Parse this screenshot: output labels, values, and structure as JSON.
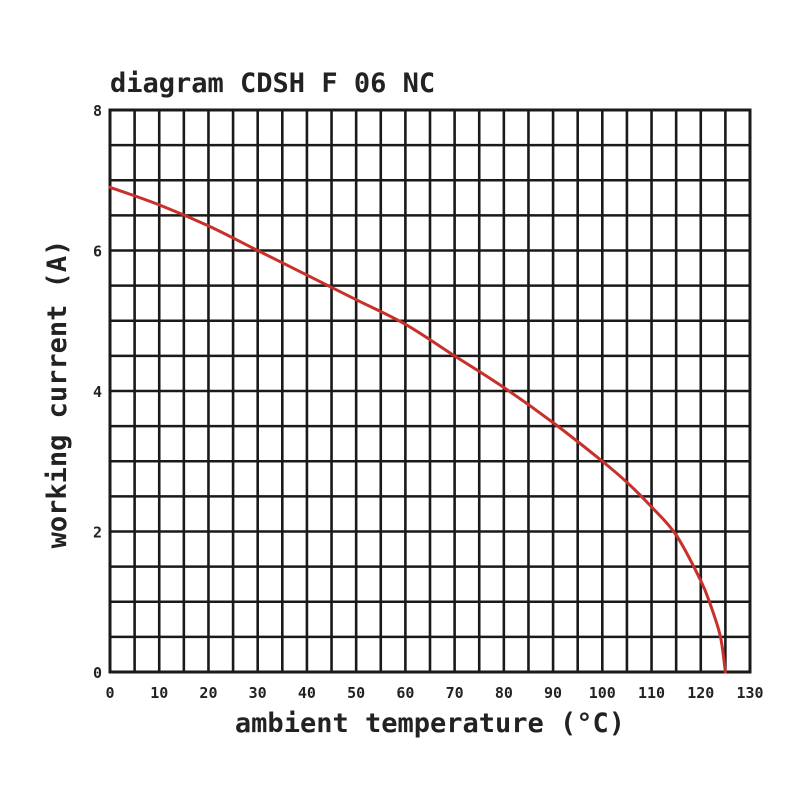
{
  "chart_data": {
    "type": "line",
    "title": "diagram CDSH F 06 NC",
    "xlabel": "ambient temperature (°C)",
    "ylabel": "working current (A)",
    "xlim": [
      0,
      130
    ],
    "ylim": [
      0,
      8
    ],
    "x_ticks": [
      "0",
      "10",
      "20",
      "30",
      "40",
      "50",
      "60",
      "70",
      "80",
      "90",
      "100",
      "110",
      "120",
      "130"
    ],
    "y_ticks": [
      "0",
      "2",
      "4",
      "6",
      "8"
    ],
    "x_grid_step": 5,
    "y_grid_step": 0.5,
    "grid": true,
    "line_color": "#c8312b",
    "series": [
      {
        "x": [
          0,
          10,
          20,
          30,
          40,
          50,
          60,
          70,
          80,
          90,
          100,
          105,
          110,
          115,
          120,
          122,
          124,
          125
        ],
        "y": [
          6.9,
          6.65,
          6.35,
          6.0,
          5.65,
          5.3,
          4.95,
          4.5,
          4.05,
          3.55,
          3.0,
          2.7,
          2.35,
          1.95,
          1.3,
          0.95,
          0.5,
          0.0
        ]
      }
    ]
  }
}
